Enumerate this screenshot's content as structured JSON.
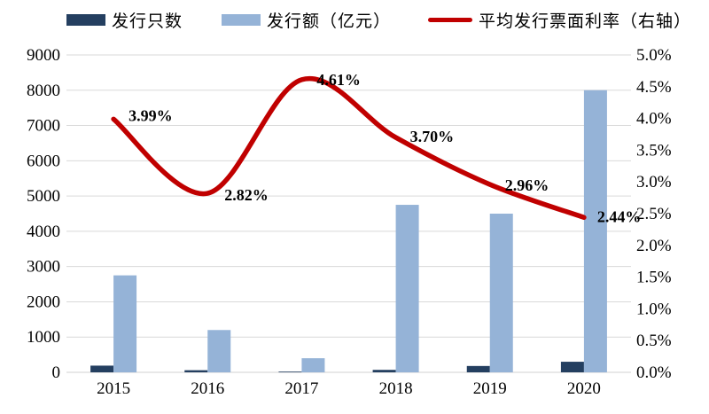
{
  "legend": {
    "items": [
      {
        "label": "发行只数",
        "swatch": "bar",
        "color": "#243F60"
      },
      {
        "label": "发行额（亿元）",
        "swatch": "bar",
        "color": "#95B3D7"
      },
      {
        "label": "平均发行票面利率（右轴）",
        "swatch": "line",
        "color": "#C00000"
      }
    ]
  },
  "chart_data": {
    "type": "bar",
    "subtype": "bar+line combo, dual axis",
    "categories": [
      "2015",
      "2016",
      "2017",
      "2018",
      "2019",
      "2020"
    ],
    "series": [
      {
        "name": "发行只数",
        "type": "bar",
        "axis": "left",
        "color": "#243F60",
        "values": [
          190,
          60,
          20,
          70,
          180,
          300
        ]
      },
      {
        "name": "发行额（亿元）",
        "type": "bar",
        "axis": "left",
        "color": "#95B3D7",
        "values": [
          2750,
          1200,
          400,
          4750,
          4500,
          8000
        ]
      },
      {
        "name": "平均发行票面利率（右轴）",
        "type": "line",
        "axis": "right",
        "color": "#C00000",
        "smooth": true,
        "values": [
          3.99,
          2.82,
          4.61,
          3.7,
          2.96,
          2.44
        ],
        "point_labels": [
          "3.99%",
          "2.82%",
          "4.61%",
          "3.70%",
          "2.96%",
          "2.44%"
        ]
      }
    ],
    "left_axis": {
      "min": 0,
      "max": 9000,
      "step": 1000,
      "tick_labels": [
        "0",
        "1000",
        "2000",
        "3000",
        "4000",
        "5000",
        "6000",
        "7000",
        "8000",
        "9000"
      ]
    },
    "right_axis": {
      "min": 0,
      "max": 5,
      "step": 0.5,
      "tick_labels": [
        "0.0%",
        "0.5%",
        "1.0%",
        "1.5%",
        "2.0%",
        "2.5%",
        "3.0%",
        "3.5%",
        "4.0%",
        "4.5%",
        "5.0%"
      ]
    },
    "grid": "horizontal",
    "grid_color": "#D9D9D9",
    "legend_position": "top",
    "title": "",
    "xlabel": "",
    "ylabel": ""
  }
}
